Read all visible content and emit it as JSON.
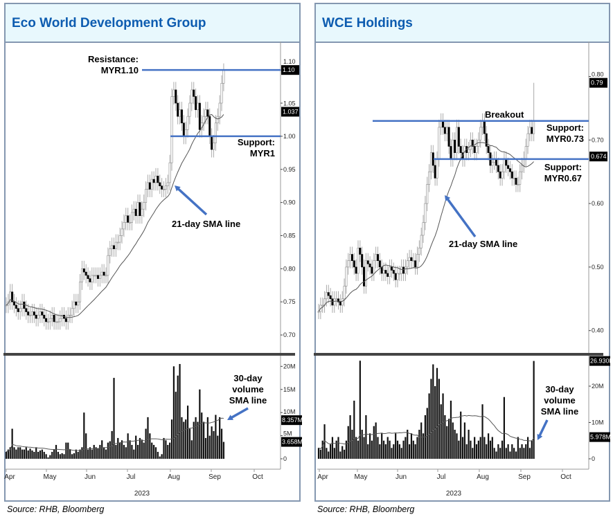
{
  "chart_data": [
    {
      "type": "candlestick",
      "title": "Eco World Development Group",
      "source": "Source: RHB, Bloomberg",
      "year_label": "2023",
      "months": [
        "Apr",
        "May",
        "Jun",
        "Jul",
        "Aug",
        "Sep",
        "Oct"
      ],
      "price_ticks": [
        "0.70",
        "0.75",
        "0.80",
        "0.85",
        "0.90",
        "0.95",
        "1.00",
        "1.05",
        "1.10"
      ],
      "volume_ticks": [
        "0",
        "5M",
        "10M",
        "15M",
        "20M"
      ],
      "ylim": [
        0.675,
        1.143
      ],
      "volume_ylim": [
        0,
        22
      ],
      "sma_period": 21,
      "volume_sma_period": 30,
      "last_high": 1.11,
      "close": [
        0.745,
        0.75,
        0.765,
        0.75,
        0.745,
        0.74,
        0.735,
        0.74,
        0.75,
        0.74,
        0.735,
        0.73,
        0.73,
        0.735,
        0.73,
        0.725,
        0.73,
        0.735,
        0.73,
        0.725,
        0.72,
        0.72,
        0.725,
        0.73,
        0.72,
        0.72,
        0.72,
        0.725,
        0.73,
        0.725,
        0.72,
        0.73,
        0.73,
        0.74,
        0.75,
        0.745,
        0.75,
        0.78,
        0.8,
        0.795,
        0.79,
        0.785,
        0.78,
        0.79,
        0.79,
        0.79,
        0.785,
        0.79,
        0.795,
        0.79,
        0.79,
        0.82,
        0.83,
        0.835,
        0.83,
        0.84,
        0.84,
        0.85,
        0.86,
        0.87,
        0.88,
        0.87,
        0.87,
        0.885,
        0.89,
        0.88,
        0.9,
        0.88,
        0.89,
        0.9,
        0.92,
        0.93,
        0.92,
        0.935,
        0.93,
        0.94,
        0.93,
        0.925,
        0.92,
        0.92,
        0.925,
        0.93,
        0.96,
        1.06,
        1.07,
        1.05,
        1.03,
        1.04,
        1.02,
        1.0,
        1.01,
        1.03,
        1.05,
        1.07,
        1.06,
        1.04,
        1.05,
        1.01,
        1.02,
        1.03,
        1.04,
        1.03,
        1.0,
        0.98,
        0.99,
        1.02,
        1.03,
        1.05,
        1.08,
        1.1
      ],
      "volume_m": [
        1.5,
        2,
        2.5,
        6.5,
        2.5,
        2,
        2.5,
        2.5,
        2,
        2,
        2.5,
        1.8,
        2.2,
        1.8,
        1.5,
        2.5,
        1.5,
        1.8,
        2,
        1.5,
        1,
        0.3,
        0.8,
        1.5,
        2,
        3,
        1.5,
        1,
        1.2,
        1,
        3.5,
        3.5,
        2,
        1,
        1.2,
        2,
        1.5,
        2,
        2.5,
        10,
        5.5,
        2,
        2.5,
        2,
        3,
        2.5,
        2.2,
        3,
        4,
        2.5,
        2,
        3.5,
        3.8,
        6,
        17.5,
        3,
        4.5,
        3.5,
        4,
        3,
        2.5,
        5.5,
        4,
        3,
        2,
        5,
        3,
        4.5,
        4,
        3.5,
        6.5,
        9,
        5.5,
        3.5,
        3,
        2.5,
        1.5,
        0.5,
        1,
        4.5,
        4,
        3,
        3.5,
        8.5,
        20,
        14.5,
        18,
        20.5,
        9,
        8,
        8.5,
        11.5,
        6.5,
        4,
        8,
        9,
        8,
        15,
        10,
        8,
        4.5,
        9,
        5,
        7,
        6,
        9.5,
        5,
        9,
        6.5,
        3.658
      ],
      "price_tags": [
        {
          "value": 1.1,
          "label": "1.10"
        },
        {
          "value": 1.037,
          "label": "1.037"
        }
      ],
      "volume_tags": [
        {
          "value": 8.357,
          "label": "8.357M"
        },
        {
          "value": 3.658,
          "label": "3.658M"
        }
      ],
      "levels": [
        {
          "kind": "resistance",
          "value": 1.1,
          "label_1": "Resistance:",
          "label_2": "MYR1.10"
        },
        {
          "kind": "support",
          "value": 1.0,
          "label_1": "Support:",
          "label_2": "MYR1"
        }
      ],
      "sma_annotation": "21-day SMA line",
      "volume_annotation": [
        "30-day",
        "volume",
        "SMA line"
      ],
      "colors": {
        "level_line": "#4472c4",
        "title": "#0d5cb0",
        "header_bg": "#e8f8fd",
        "border": "#8497b0"
      }
    },
    {
      "type": "candlestick",
      "title": "WCE Holdings",
      "source": "Source: RHB, Bloomberg",
      "year_label": "2023",
      "months": [
        "Apr",
        "May",
        "Jun",
        "Jul",
        "Aug",
        "Sep",
        "Oct"
      ],
      "price_ticks": [
        "0.40",
        "0.50",
        "0.60",
        "0.70",
        "0.80"
      ],
      "volume_ticks": [
        "0",
        "10M",
        "20M"
      ],
      "ylim": [
        0.367,
        0.855
      ],
      "volume_ylim": [
        0,
        28
      ],
      "sma_period": 21,
      "volume_sma_period": 30,
      "last_high": 0.79,
      "close": [
        0.43,
        0.44,
        0.44,
        0.45,
        0.46,
        0.455,
        0.45,
        0.44,
        0.45,
        0.45,
        0.445,
        0.44,
        0.45,
        0.47,
        0.5,
        0.51,
        0.52,
        0.51,
        0.5,
        0.49,
        0.53,
        0.52,
        0.5,
        0.47,
        0.51,
        0.505,
        0.5,
        0.49,
        0.51,
        0.52,
        0.51,
        0.5,
        0.49,
        0.495,
        0.49,
        0.485,
        0.5,
        0.495,
        0.49,
        0.48,
        0.49,
        0.49,
        0.5,
        0.49,
        0.5,
        0.51,
        0.515,
        0.51,
        0.51,
        0.5,
        0.52,
        0.53,
        0.55,
        0.57,
        0.6,
        0.63,
        0.65,
        0.68,
        0.66,
        0.64,
        0.67,
        0.72,
        0.73,
        0.72,
        0.71,
        0.72,
        0.69,
        0.67,
        0.7,
        0.68,
        0.72,
        0.69,
        0.68,
        0.67,
        0.69,
        0.68,
        0.685,
        0.7,
        0.69,
        0.68,
        0.69,
        0.7,
        0.72,
        0.73,
        0.71,
        0.69,
        0.68,
        0.66,
        0.665,
        0.67,
        0.66,
        0.65,
        0.64,
        0.65,
        0.67,
        0.66,
        0.655,
        0.65,
        0.64,
        0.64,
        0.63,
        0.63,
        0.65,
        0.66,
        0.67,
        0.69,
        0.71,
        0.72,
        0.71,
        0.73
      ],
      "volume_m": [
        3,
        2.5,
        5,
        9.5,
        3,
        2,
        4,
        6,
        3,
        5,
        6,
        2,
        3.5,
        2.5,
        5,
        9,
        12,
        8,
        16,
        6,
        5,
        27,
        8,
        6,
        12,
        4,
        7,
        5,
        9,
        10,
        6,
        4,
        7,
        5,
        4,
        6,
        5,
        3,
        4,
        7,
        5,
        4,
        3,
        5,
        6,
        8,
        4,
        7,
        5,
        4,
        6,
        8,
        10,
        7,
        12,
        14,
        18,
        22,
        26,
        20,
        25,
        22,
        15,
        18,
        12,
        9,
        11,
        16,
        10,
        8,
        7,
        5,
        13,
        6,
        10,
        4,
        8,
        5,
        3,
        6,
        4,
        5,
        6,
        15,
        6,
        4,
        7,
        5,
        6,
        3,
        2,
        4,
        3,
        5,
        17,
        3,
        4,
        2,
        4,
        3,
        2,
        6,
        3,
        4,
        3,
        4,
        6,
        3,
        5,
        26.93
      ],
      "price_tags": [
        {
          "value": 0.79,
          "label": "0.79"
        },
        {
          "value": 0.674,
          "label": "0.674"
        }
      ],
      "volume_tags": [
        {
          "value": 26.93,
          "label": "26.930M"
        },
        {
          "value": 5.978,
          "label": "5.978M"
        }
      ],
      "levels": [
        {
          "kind": "breakout",
          "value": 0.73,
          "label_1": "Breakout",
          "label_2": ""
        },
        {
          "kind": "support",
          "value": 0.73,
          "label_1": "Support:",
          "label_2": "MYR0.73"
        },
        {
          "kind": "support",
          "value": 0.67,
          "label_1": "Support:",
          "label_2": "MYR0.67"
        }
      ],
      "sma_annotation": "21-day SMA line",
      "volume_annotation": [
        "30-day",
        "volume",
        "SMA line"
      ],
      "colors": {
        "level_line": "#4472c4",
        "title": "#0d5cb0",
        "header_bg": "#e8f8fd",
        "border": "#8497b0"
      }
    }
  ]
}
